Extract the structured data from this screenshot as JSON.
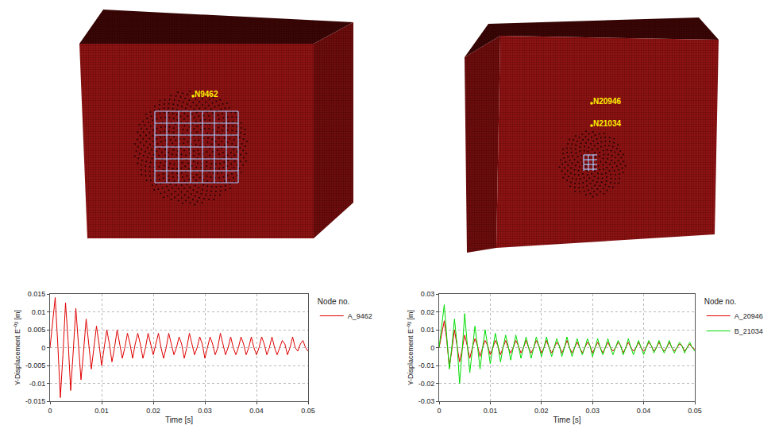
{
  "chart_data": [
    {
      "type": "line",
      "x_label": "Time [s]",
      "y_label": "Y-Displacement E⁻⁰³ [m]",
      "legend_title": "Node no.",
      "legend": "top right",
      "grid": true,
      "xlim": [
        0,
        0.05
      ],
      "xticks": [
        0,
        0.01,
        0.02,
        0.03,
        0.04,
        0.05
      ],
      "ylim": [
        -0.015,
        0.015
      ],
      "yticks": [
        -0.015,
        -0.01,
        -0.005,
        0,
        0.005,
        0.01,
        0.015
      ],
      "x": [
        0,
        0.0005,
        0.001,
        0.0015,
        0.002,
        0.0025,
        0.003,
        0.0035,
        0.004,
        0.0045,
        0.005,
        0.0055,
        0.006,
        0.0065,
        0.007,
        0.0075,
        0.008,
        0.0085,
        0.009,
        0.0095,
        0.01,
        0.0105,
        0.011,
        0.0115,
        0.012,
        0.0125,
        0.013,
        0.0135,
        0.014,
        0.0145,
        0.015,
        0.0155,
        0.016,
        0.0165,
        0.017,
        0.0175,
        0.018,
        0.0185,
        0.019,
        0.0195,
        0.02,
        0.0205,
        0.021,
        0.0215,
        0.022,
        0.0225,
        0.023,
        0.0235,
        0.024,
        0.0245,
        0.025,
        0.0255,
        0.026,
        0.0265,
        0.027,
        0.0275,
        0.028,
        0.0285,
        0.029,
        0.0295,
        0.03,
        0.0305,
        0.031,
        0.0315,
        0.032,
        0.0325,
        0.033,
        0.0335,
        0.034,
        0.0345,
        0.035,
        0.0355,
        0.036,
        0.0365,
        0.037,
        0.0375,
        0.038,
        0.0385,
        0.039,
        0.0395,
        0.04,
        0.0405,
        0.041,
        0.0415,
        0.042,
        0.0425,
        0.043,
        0.0435,
        0.044,
        0.0445,
        0.045,
        0.0455,
        0.046,
        0.0465,
        0.047,
        0.0475,
        0.048,
        0.0485,
        0.049,
        0.0495,
        0.05
      ],
      "series": [
        {
          "name": "A_9462",
          "color": "#e00000",
          "values": [
            0,
            0.007,
            0.014,
            0.001,
            -0.014,
            -0.002,
            0.0125,
            0.002,
            -0.012,
            -0.001,
            0.011,
            0.001,
            -0.009,
            -0.001,
            0.008,
            0.001,
            -0.006,
            0,
            0.006,
            0.001,
            -0.005,
            0,
            0.005,
            0.001,
            -0.004,
            0,
            0.005,
            0.001,
            -0.003,
            0,
            0.004,
            0.001,
            -0.003,
            0.001,
            0.004,
            0.001,
            -0.003,
            0,
            0.004,
            0.001,
            -0.002,
            0.001,
            0.004,
            0,
            -0.003,
            0,
            0.004,
            0.001,
            -0.002,
            0,
            0.003,
            0.001,
            -0.003,
            0,
            0.004,
            0.001,
            -0.002,
            0,
            0.003,
            0.001,
            -0.003,
            0,
            0.003,
            0.001,
            -0.002,
            0,
            0.004,
            0.001,
            -0.002,
            0,
            0.003,
            0,
            -0.002,
            0,
            0.003,
            0.001,
            -0.002,
            0,
            0.003,
            0,
            -0.002,
            0,
            0.003,
            0.001,
            -0.002,
            0,
            0.003,
            0,
            -0.002,
            0,
            0.002,
            0.001,
            -0.002,
            0,
            0.003,
            0,
            -0.001,
            0.001,
            0.002,
            0,
            -0.001
          ]
        }
      ]
    },
    {
      "type": "line",
      "x_label": "Time [s]",
      "y_label": "Y-Displacement E⁻⁰³ [m]",
      "legend_title": "Node no.",
      "legend": "top right",
      "grid": true,
      "xlim": [
        0,
        0.05
      ],
      "xticks": [
        0,
        0.01,
        0.02,
        0.03,
        0.04,
        0.05
      ],
      "ylim": [
        -0.03,
        0.03
      ],
      "yticks": [
        -0.03,
        -0.02,
        -0.01,
        0,
        0.01,
        0.02,
        0.03
      ],
      "x": [
        0,
        0.0005,
        0.001,
        0.0015,
        0.002,
        0.0025,
        0.003,
        0.0035,
        0.004,
        0.0045,
        0.005,
        0.0055,
        0.006,
        0.0065,
        0.007,
        0.0075,
        0.008,
        0.0085,
        0.009,
        0.0095,
        0.01,
        0.0105,
        0.011,
        0.0115,
        0.012,
        0.0125,
        0.013,
        0.0135,
        0.014,
        0.0145,
        0.015,
        0.0155,
        0.016,
        0.0165,
        0.017,
        0.0175,
        0.018,
        0.0185,
        0.019,
        0.0195,
        0.02,
        0.0205,
        0.021,
        0.0215,
        0.022,
        0.0225,
        0.023,
        0.0235,
        0.024,
        0.0245,
        0.025,
        0.0255,
        0.026,
        0.0265,
        0.027,
        0.0275,
        0.028,
        0.0285,
        0.029,
        0.0295,
        0.03,
        0.0305,
        0.031,
        0.0315,
        0.032,
        0.0325,
        0.033,
        0.0335,
        0.034,
        0.0345,
        0.035,
        0.0355,
        0.036,
        0.0365,
        0.037,
        0.0375,
        0.038,
        0.0385,
        0.039,
        0.0395,
        0.04,
        0.0405,
        0.041,
        0.0415,
        0.042,
        0.0425,
        0.043,
        0.0435,
        0.044,
        0.0445,
        0.045,
        0.0455,
        0.046,
        0.0465,
        0.047,
        0.0475,
        0.048,
        0.0485,
        0.049,
        0.0495,
        0.05
      ],
      "series": [
        {
          "name": "A_20946",
          "color": "#e00000",
          "values": [
            0,
            0.008,
            0.015,
            0.004,
            -0.011,
            -0.001,
            0.01,
            0.001,
            -0.008,
            -0.001,
            0.007,
            0.001,
            -0.006,
            0,
            0.005,
            0.001,
            -0.005,
            0,
            0.004,
            0.001,
            -0.004,
            0,
            0.004,
            0.001,
            -0.004,
            0,
            0.004,
            0,
            -0.003,
            0,
            0.004,
            0.001,
            -0.003,
            0,
            0.004,
            0,
            -0.003,
            0,
            0.004,
            0.001,
            -0.003,
            0,
            0.004,
            0,
            -0.003,
            0,
            0.003,
            0.001,
            -0.003,
            0,
            0.004,
            0,
            -0.003,
            0,
            0.003,
            0,
            -0.003,
            0,
            0.003,
            0.001,
            -0.003,
            0,
            0.003,
            0,
            -0.003,
            0,
            0.003,
            0,
            -0.002,
            0,
            0.003,
            0.001,
            -0.003,
            0,
            0.003,
            0,
            -0.002,
            0,
            0.003,
            0,
            -0.002,
            0,
            0.003,
            0.001,
            -0.002,
            0,
            0.003,
            0,
            -0.002,
            0,
            0.003,
            0,
            -0.002,
            0,
            0.002,
            0.001,
            -0.002,
            0,
            0.002,
            0,
            -0.001
          ]
        },
        {
          "name": "B_21034",
          "color": "#00dd00",
          "values": [
            0,
            0.012,
            0.024,
            0.006,
            -0.012,
            0.001,
            0.016,
            0.002,
            -0.02,
            -0.002,
            0.019,
            0.002,
            -0.014,
            -0.001,
            0.012,
            0.001,
            -0.012,
            0,
            0.01,
            0.001,
            -0.009,
            0,
            0.008,
            0.001,
            -0.008,
            0,
            0.007,
            0.001,
            -0.007,
            0,
            0.007,
            0.001,
            -0.006,
            0,
            0.006,
            0,
            -0.006,
            0,
            0.006,
            0.001,
            -0.005,
            0,
            0.006,
            0,
            -0.005,
            0,
            0.005,
            0.001,
            -0.005,
            0,
            0.006,
            0,
            -0.005,
            0,
            0.005,
            0,
            -0.004,
            0,
            0.005,
            0.001,
            -0.005,
            0,
            0.005,
            0,
            -0.004,
            0,
            0.005,
            0,
            -0.004,
            0,
            0.004,
            0.001,
            -0.004,
            0,
            0.005,
            0,
            -0.004,
            0,
            0.004,
            0,
            -0.004,
            0,
            0.004,
            0.001,
            -0.003,
            0,
            0.004,
            0,
            -0.003,
            0,
            0.004,
            0,
            -0.003,
            0,
            0.003,
            0.001,
            -0.003,
            0,
            0.003,
            0,
            -0.002
          ]
        }
      ]
    }
  ],
  "mesh_views": [
    {
      "node_labels": [
        "N9462"
      ]
    },
    {
      "node_labels": [
        "N20946",
        "N21034"
      ]
    }
  ]
}
